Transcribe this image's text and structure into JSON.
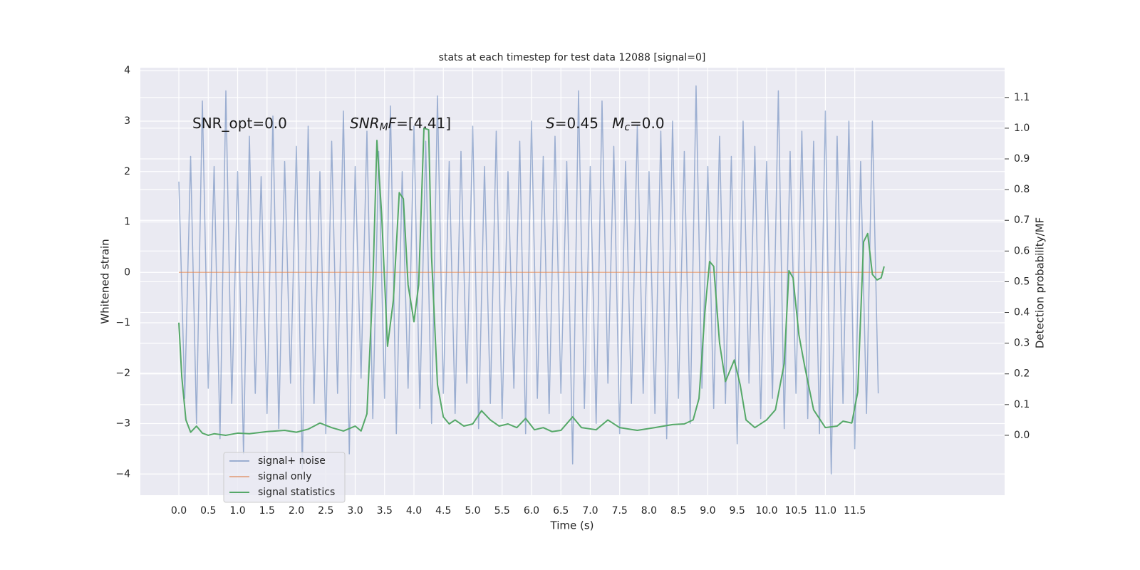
{
  "chart_data": {
    "type": "line",
    "title": "stats at each timestep for test data 12088 [signal=0]",
    "xlabel": "Time (s)",
    "ylabel": "Whitened strain",
    "y2label": "Detection probability/MF",
    "annotations": [
      [
        "SNR_opt=0.0"
      ],
      [
        "SNR",
        "M",
        "F",
        "=[4.41]"
      ],
      [
        "S",
        "=0.45   ",
        "M",
        "c",
        "=0.0"
      ]
    ],
    "grid": true,
    "legend": "lower left",
    "xlim": [
      -0.655,
      14.05
    ],
    "ylim": [
      -4.42,
      4.06
    ],
    "y2lim": [
      -0.195,
      1.197
    ],
    "xticks": [
      {
        "value": 0,
        "label": "0.0"
      },
      0.5,
      {
        "value": 1,
        "label": "1.0"
      },
      1.5,
      {
        "value": 2,
        "label": "2.0"
      },
      2.5,
      {
        "value": 3,
        "label": "3.0"
      },
      3.5,
      {
        "value": 4,
        "label": "4.0"
      },
      4.5,
      {
        "value": 5,
        "label": "5.0"
      },
      5.5,
      {
        "value": 6,
        "label": "6.0"
      },
      6.5,
      {
        "value": 7,
        "label": "7.0"
      },
      7.5,
      {
        "value": 8,
        "label": "8.0"
      },
      8.5,
      {
        "value": 9,
        "label": "9.0"
      },
      9.5,
      {
        "value": 10,
        "label": "10.0"
      },
      10.5,
      {
        "value": 11,
        "label": "11.0"
      },
      11.5
    ],
    "yticks": [
      {
        "value": -4,
        "label": "−4"
      },
      {
        "value": -3,
        "label": "−3"
      },
      {
        "value": -2,
        "label": "−2"
      },
      {
        "value": -1,
        "label": "−1"
      },
      0,
      1,
      2,
      3,
      4
    ],
    "y2ticks": [
      {
        "value": 0,
        "label": "0.0"
      },
      0.1,
      0.2,
      0.3,
      0.4,
      0.5,
      0.6,
      0.7,
      0.8,
      0.9,
      {
        "value": 1,
        "label": "1.0"
      },
      1.1
    ],
    "series": [
      {
        "name": "signal+ noise",
        "color": "#4c72b0",
        "opacity": 0.5,
        "x": [
          0,
          0.1,
          0.2,
          0.3,
          0.4,
          0.5,
          0.6,
          0.7,
          0.8,
          0.9,
          1,
          1.1,
          1.2,
          1.3,
          1.4,
          1.5,
          1.6,
          1.7,
          1.8,
          1.9,
          2,
          2.1,
          2.2,
          2.3,
          2.4,
          2.5,
          2.6,
          2.7,
          2.8,
          2.9,
          3,
          3.1,
          3.2,
          3.3,
          3.4,
          3.5,
          3.6,
          3.7,
          3.8,
          3.9,
          4,
          4.1,
          4.2,
          4.3,
          4.4,
          4.5,
          4.6,
          4.7,
          4.8,
          4.9,
          5,
          5.1,
          5.2,
          5.3,
          5.4,
          5.5,
          5.6,
          5.7,
          5.8,
          5.9,
          6,
          6.1,
          6.2,
          6.3,
          6.4,
          6.5,
          6.6,
          6.7,
          6.8,
          6.9,
          7,
          7.1,
          7.2,
          7.3,
          7.4,
          7.5,
          7.6,
          7.7,
          7.8,
          7.9,
          8,
          8.1,
          8.2,
          8.3,
          8.4,
          8.5,
          8.6,
          8.7,
          8.8,
          8.9,
          9,
          9.1,
          9.2,
          9.3,
          9.4,
          9.5,
          9.6,
          9.7,
          9.8,
          9.9,
          10,
          10.1,
          10.2,
          10.3,
          10.4,
          10.5,
          10.6,
          10.7,
          10.8,
          10.9,
          11,
          11.1,
          11.2,
          11.3,
          11.4,
          11.5,
          11.6,
          11.7,
          11.8,
          11.9
        ],
        "values": [
          1.8,
          -2.5,
          2.3,
          -3.0,
          3.4,
          -2.3,
          2.1,
          -3.3,
          3.6,
          -2.6,
          2.0,
          -3.6,
          2.7,
          -2.4,
          1.9,
          -2.8,
          3.1,
          -3.1,
          2.2,
          -2.2,
          2.5,
          -3.9,
          2.9,
          -2.6,
          2.0,
          -3.2,
          2.6,
          -2.4,
          3.2,
          -3.6,
          2.1,
          -2.1,
          2.8,
          -2.9,
          2.4,
          -2.5,
          3.3,
          -3.2,
          2.0,
          -2.3,
          2.9,
          -2.7,
          2.6,
          -3.0,
          3.5,
          -2.4,
          2.2,
          -2.8,
          2.4,
          -2.2,
          2.9,
          -3.1,
          2.1,
          -2.6,
          2.8,
          -2.9,
          2.0,
          -2.3,
          2.6,
          -3.2,
          3.0,
          -2.5,
          2.3,
          -2.8,
          2.7,
          -2.4,
          2.2,
          -3.8,
          3.6,
          -2.7,
          2.1,
          -3.0,
          3.4,
          -2.2,
          2.5,
          -3.2,
          2.2,
          -2.6,
          2.9,
          -2.4,
          2.0,
          -2.8,
          2.8,
          -3.3,
          3.0,
          -2.5,
          2.4,
          -3.0,
          3.7,
          -2.3,
          2.1,
          -2.7,
          2.7,
          -2.6,
          2.3,
          -3.4,
          3.0,
          -2.2,
          2.5,
          -2.9,
          2.2,
          -2.5,
          3.6,
          -3.1,
          2.4,
          -2.4,
          2.8,
          -2.9,
          2.6,
          -3.2,
          3.2,
          -4.0,
          2.7,
          -2.6,
          3.0,
          -3.5,
          2.2,
          -2.8,
          3.0,
          -2.4
        ]
      },
      {
        "name": "signal only",
        "color": "#dd8452",
        "opacity": 0.6,
        "x": [
          0,
          11.99
        ],
        "values": [
          0,
          0
        ]
      },
      {
        "name": "signal statistics",
        "color": "#55a868",
        "opacity": 1,
        "axis": "y2",
        "x": [
          0,
          0.05,
          0.12,
          0.2,
          0.3,
          0.4,
          0.5,
          0.6,
          0.8,
          1,
          1.2,
          1.5,
          1.8,
          2,
          2.2,
          2.4,
          2.6,
          2.8,
          3,
          3.1,
          3.2,
          3.3,
          3.37,
          3.45,
          3.55,
          3.65,
          3.75,
          3.82,
          3.9,
          4,
          4.08,
          4.17,
          4.25,
          4.3,
          4.4,
          4.5,
          4.6,
          4.7,
          4.85,
          5,
          5.15,
          5.3,
          5.45,
          5.6,
          5.75,
          5.9,
          6.05,
          6.2,
          6.35,
          6.5,
          6.7,
          6.85,
          7.1,
          7.3,
          7.5,
          7.8,
          8.1,
          8.4,
          8.6,
          8.75,
          8.85,
          8.95,
          9.03,
          9.1,
          9.2,
          9.3,
          9.45,
          9.55,
          9.65,
          9.8,
          10,
          10.15,
          10.3,
          10.38,
          10.45,
          10.55,
          10.65,
          10.8,
          11,
          11.2,
          11.3,
          11.45,
          11.55,
          11.65,
          11.72,
          11.8,
          11.88,
          11.95,
          12
        ],
        "values": [
          0.367,
          0.19,
          0.05,
          0.01,
          0.03,
          0.007,
          0,
          0.005,
          0,
          0.007,
          0.005,
          0.012,
          0.016,
          0.01,
          0.02,
          0.04,
          0.025,
          0.014,
          0.03,
          0.014,
          0.07,
          0.49,
          0.96,
          0.72,
          0.29,
          0.44,
          0.79,
          0.77,
          0.49,
          0.37,
          0.49,
          1.0,
          0.995,
          0.58,
          0.165,
          0.06,
          0.037,
          0.05,
          0.03,
          0.037,
          0.08,
          0.05,
          0.03,
          0.037,
          0.025,
          0.055,
          0.018,
          0.025,
          0.012,
          0.016,
          0.06,
          0.025,
          0.018,
          0.05,
          0.025,
          0.016,
          0.025,
          0.035,
          0.037,
          0.05,
          0.12,
          0.4,
          0.566,
          0.55,
          0.3,
          0.175,
          0.245,
          0.165,
          0.05,
          0.025,
          0.05,
          0.083,
          0.234,
          0.536,
          0.513,
          0.327,
          0.223,
          0.083,
          0.025,
          0.03,
          0.046,
          0.04,
          0.14,
          0.63,
          0.657,
          0.524,
          0.506,
          0.513,
          0.55
        ]
      }
    ]
  }
}
